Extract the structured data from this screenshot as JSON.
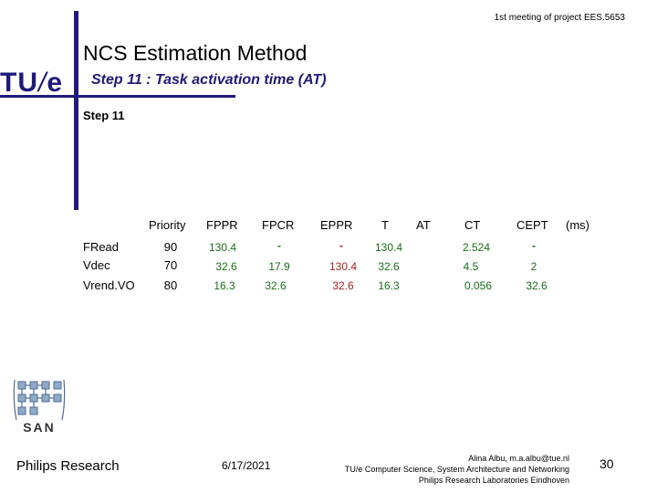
{
  "header": {
    "meeting": "1st meeting of project EES.5653",
    "logo_tu": "TU",
    "logo_slash": "/",
    "logo_e": "e"
  },
  "slide": {
    "title": "NCS Estimation Method",
    "subtitle": "Step 11 : Task activation time (AT)",
    "step_label": "Step 11"
  },
  "table": {
    "columns": [
      "Priority",
      "FPPR",
      "FPCR",
      "EPPR",
      "T",
      "AT",
      "CT",
      "CEPT",
      "(ms)"
    ],
    "rows": [
      {
        "name": "FRead",
        "priority": "90",
        "fppr": "130.4",
        "fpcr": "-",
        "eppr": "-",
        "t": "130.4",
        "at": "",
        "ct": "2.524",
        "cept": "-"
      },
      {
        "name": "Vdec",
        "priority": "70",
        "fppr": "32.6",
        "fpcr": "17.9",
        "eppr": "130.4",
        "t": "32.6",
        "at": "",
        "ct": "4.5",
        "cept": "2"
      },
      {
        "name": "Vrend.VO",
        "priority": "80",
        "fppr": "16.3",
        "fpcr": "32.6",
        "eppr": "32.6",
        "t": "16.3",
        "at": "",
        "ct": "0.056",
        "cept": "32.6"
      }
    ]
  },
  "colors": {
    "brand": "#1f1a7a",
    "green": "#1a6e1a",
    "red": "#a12323"
  },
  "san_logo_text": "SAN",
  "footer": {
    "org": "Philips Research",
    "date": "6/17/2021",
    "author": "Alina Albu, m.a.albu@tue.nl",
    "dept": "TU/e Computer Science, System Architecture and Networking",
    "lab": "Philips Research Laboratories Eindhoven",
    "page": "30"
  }
}
